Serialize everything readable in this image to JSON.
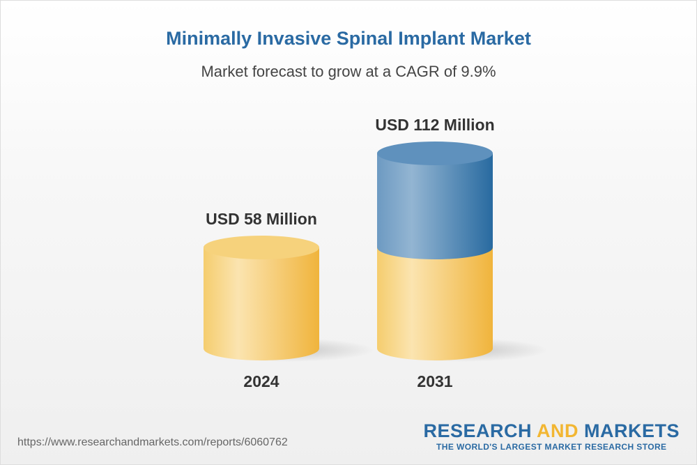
{
  "chart_data": {
    "type": "bar",
    "style": "3d-cylinder",
    "title": "Minimally Invasive Spinal Implant Market",
    "subtitle": "Market forecast to grow at a CAGR of 9.9%",
    "categories": [
      "2024",
      "2031"
    ],
    "values": [
      58,
      112
    ],
    "data_labels": [
      "USD 58 Million",
      "USD 112 Million"
    ],
    "units": "USD Million",
    "grid": false,
    "colors": {
      "base": "#f2b632",
      "growth": "#2a6aa3"
    }
  },
  "footer": {
    "url": "https://www.researchandmarkets.com/reports/6060762",
    "logo_part1": "RESEARCH ",
    "logo_and": "AND",
    "logo_part2": " MARKETS",
    "logo_tagline": "THE WORLD'S LARGEST MARKET RESEARCH STORE"
  }
}
